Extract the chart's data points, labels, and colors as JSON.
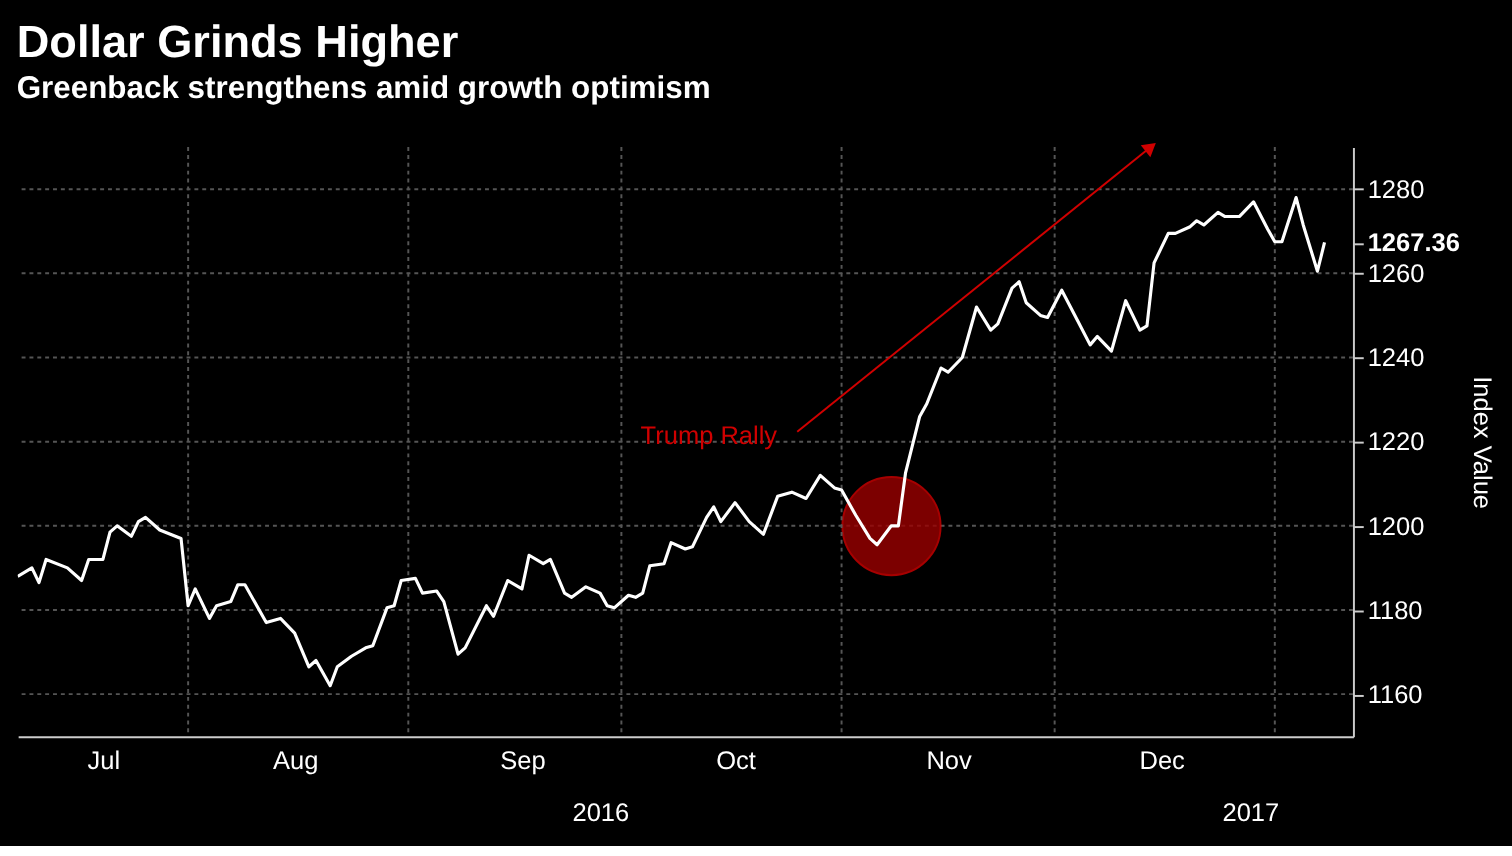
{
  "chart_data": {
    "type": "line",
    "title": "Dollar Grinds Higher",
    "subtitle": "Greenback strengthens amid growth optimism",
    "ylabel": "Index Value",
    "x": [
      "2016-07-08",
      "2016-07-10",
      "2016-07-11",
      "2016-07-12",
      "2016-07-15",
      "2016-07-17",
      "2016-07-18",
      "2016-07-20",
      "2016-07-21",
      "2016-07-22",
      "2016-07-24",
      "2016-07-25",
      "2016-07-26",
      "2016-07-28",
      "2016-07-31",
      "2016-08-01",
      "2016-08-02",
      "2016-08-04",
      "2016-08-05",
      "2016-08-07",
      "2016-08-08",
      "2016-08-09",
      "2016-08-12",
      "2016-08-14",
      "2016-08-16",
      "2016-08-18",
      "2016-08-19",
      "2016-08-21",
      "2016-08-22",
      "2016-08-24",
      "2016-08-26",
      "2016-08-27",
      "2016-08-29",
      "2016-08-30",
      "2016-08-31",
      "2016-09-02",
      "2016-09-03",
      "2016-09-05",
      "2016-09-06",
      "2016-09-08",
      "2016-09-09",
      "2016-09-12",
      "2016-09-13",
      "2016-09-15",
      "2016-09-17",
      "2016-09-18",
      "2016-09-20",
      "2016-09-21",
      "2016-09-23",
      "2016-09-24",
      "2016-09-26",
      "2016-09-28",
      "2016-09-29",
      "2016-09-30",
      "2016-10-02",
      "2016-10-03",
      "2016-10-04",
      "2016-10-05",
      "2016-10-07",
      "2016-10-08",
      "2016-10-10",
      "2016-10-11",
      "2016-10-13",
      "2016-10-14",
      "2016-10-15",
      "2016-10-17",
      "2016-10-19",
      "2016-10-21",
      "2016-10-23",
      "2016-10-25",
      "2016-10-27",
      "2016-10-29",
      "2016-10-31",
      "2016-11-01",
      "2016-11-03",
      "2016-11-05",
      "2016-11-06",
      "2016-11-08",
      "2016-11-09",
      "2016-11-10",
      "2016-11-12",
      "2016-11-13",
      "2016-11-15",
      "2016-11-16",
      "2016-11-18",
      "2016-11-20",
      "2016-11-22",
      "2016-11-23",
      "2016-11-25",
      "2016-11-26",
      "2016-11-27",
      "2016-11-29",
      "2016-11-30",
      "2016-12-02",
      "2016-12-04",
      "2016-12-06",
      "2016-12-07",
      "2016-12-09",
      "2016-12-11",
      "2016-12-13",
      "2016-12-14",
      "2016-12-15",
      "2016-12-17",
      "2016-12-18",
      "2016-12-20",
      "2016-12-21",
      "2016-12-22",
      "2016-12-24",
      "2016-12-25",
      "2016-12-27",
      "2016-12-29",
      "2016-12-31",
      "2017-01-01",
      "2017-01-02",
      "2017-01-04",
      "2017-01-05",
      "2017-01-07",
      "2017-01-08"
    ],
    "series": [
      {
        "color": "#ffffff",
        "values": [
          1188,
          1190,
          1186.5,
          1192,
          1190,
          1187,
          1192,
          1192,
          1198.5,
          1200,
          1197.5,
          1201,
          1202,
          1199,
          1197,
          1181,
          1185,
          1178,
          1181,
          1182,
          1186,
          1186,
          1177,
          1178,
          1174.5,
          1166.5,
          1168,
          1162,
          1166.5,
          1169,
          1171,
          1171.5,
          1180.5,
          1181,
          1187,
          1187.5,
          1184,
          1184.5,
          1182,
          1169.5,
          1171,
          1181,
          1178.5,
          1187,
          1185,
          1193,
          1191,
          1192,
          1184,
          1183,
          1185.5,
          1184,
          1181,
          1180.5,
          1183.5,
          1183,
          1184,
          1190.5,
          1191,
          1196,
          1194.5,
          1195,
          1202,
          1204.5,
          1201,
          1205.5,
          1201,
          1198,
          1207,
          1208,
          1206.5,
          1212,
          1209,
          1208.5,
          1202.5,
          1197,
          1195.5,
          1200,
          1200,
          1212.5,
          1226,
          1229,
          1237.5,
          1236.5,
          1240,
          1252,
          1246.5,
          1248,
          1256.5,
          1258,
          1253,
          1250,
          1249.5,
          1256,
          1249.5,
          1243,
          1245,
          1241.5,
          1253.5,
          1246.5,
          1247.5,
          1262.5,
          1269.5,
          1269.5,
          1271,
          1272.5,
          1271.5,
          1274.5,
          1273.5,
          1273.5,
          1277,
          1270.5,
          1267.5,
          1267.5,
          1278,
          1271.5,
          1260.5,
          1267.36
        ]
      }
    ],
    "xlim": [
      "2016-07-08",
      "2017-01-12"
    ],
    "xticks": [
      {
        "value": "2016-07-20",
        "label": "Jul"
      },
      {
        "value": "2016-08-01",
        "label": null
      },
      {
        "value": "2016-08-16",
        "label": "Aug"
      },
      {
        "value": "2016-09-01",
        "label": null
      },
      {
        "value": "2016-09-17",
        "label": "Sep"
      },
      {
        "value": "2016-10-01",
        "label": null
      },
      {
        "value": "2016-10-17",
        "label": "Oct"
      },
      {
        "value": "2016-11-01",
        "label": null
      },
      {
        "value": "2016-11-16",
        "label": "Nov"
      },
      {
        "value": "2016-12-01",
        "label": null
      },
      {
        "value": "2016-12-16",
        "label": "Dec"
      },
      {
        "value": "2017-01-01",
        "label": null
      }
    ],
    "ylim": [
      1150,
      1290
    ],
    "yticks": [
      1160,
      1180,
      1200,
      1220,
      1240,
      1260,
      1280,
      {
        "value": 1267.36,
        "label": "1267.36"
      }
    ],
    "annotations": [
      "Trump Rally",
      "2016",
      "2017"
    ],
    "grid": true,
    "line_style": "solid",
    "marker": "none"
  }
}
